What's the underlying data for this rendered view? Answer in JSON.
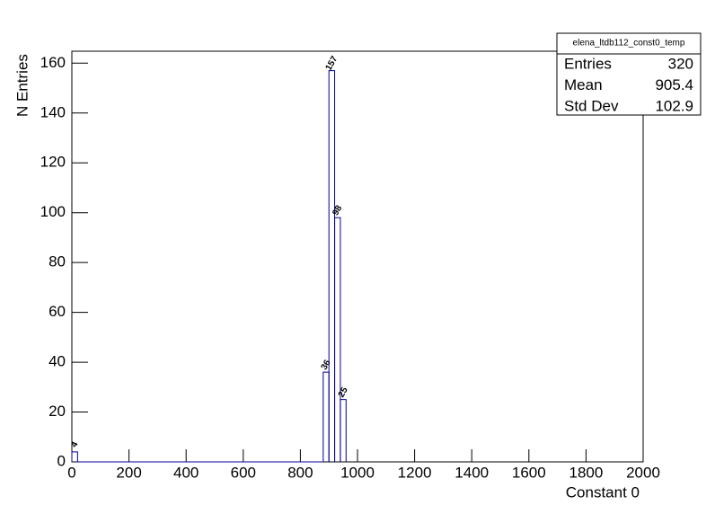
{
  "chart_data": {
    "type": "histogram",
    "y_label": "N Entries",
    "x_label": "Constant 0",
    "bins": [
      0,
      20,
      880,
      900,
      920,
      940,
      960
    ],
    "values": [
      4,
      0,
      36,
      157,
      98,
      25
    ],
    "color": "#000099",
    "xlim": [
      0,
      2000
    ],
    "xticks": [
      0,
      200,
      400,
      600,
      800,
      1000,
      1200,
      1400,
      1600,
      1800,
      2000
    ],
    "ylim": [
      0,
      164.8
    ],
    "yticks": [
      0,
      20,
      40,
      60,
      80,
      100,
      120,
      140,
      160
    ],
    "stats": {
      "title": "elena_ltdb112_const0_temp",
      "rows": [
        [
          "Entries",
          320
        ],
        [
          "Mean",
          905.4
        ],
        [
          "Std Dev",
          102.9
        ]
      ]
    }
  }
}
